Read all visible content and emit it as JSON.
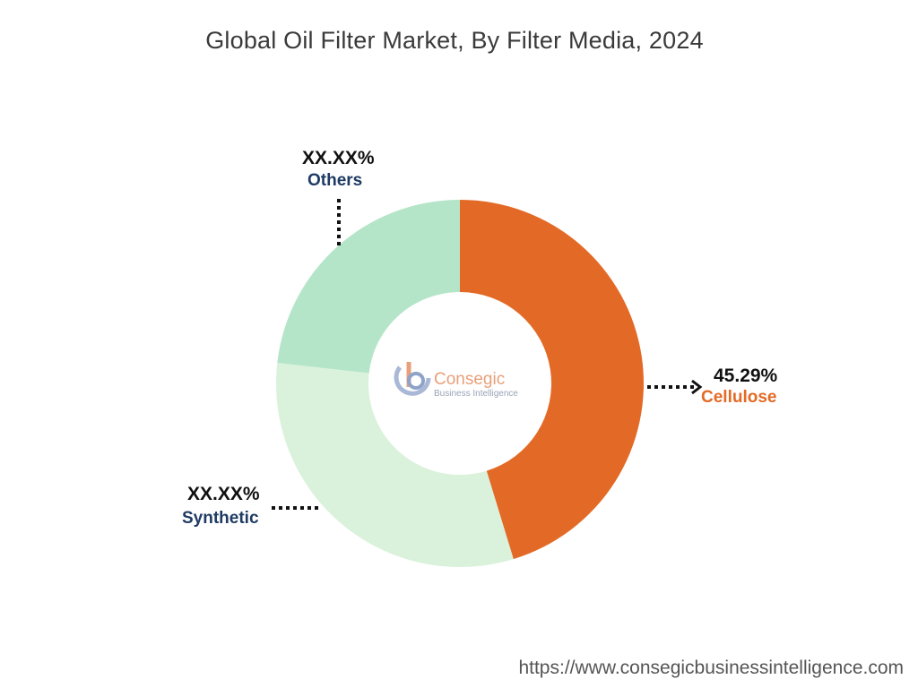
{
  "header": {
    "title": "Global Oil Filter Market, By Filter Media, 2024"
  },
  "chart_data": {
    "type": "pie",
    "variant": "donut",
    "title": "Global Oil Filter Market, By Filter Media, 2024",
    "slices": [
      {
        "name": "Cellulose",
        "value_label": "45.29%",
        "share": 45.29,
        "color": "#e36a26",
        "label_color": "#e36a26"
      },
      {
        "name": "Synthetic",
        "value_label": "XX.XX%",
        "share": 31.5,
        "color": "#daf2dc",
        "label_color": "#1f3b63"
      },
      {
        "name": "Others",
        "value_label": "XX.XX%",
        "share": 23.21,
        "color": "#b5e5c8",
        "label_color": "#1f3b63"
      }
    ],
    "legend": "none"
  },
  "watermark": {
    "name": "Consegic",
    "tagline": "Business Intelligence"
  },
  "footer": {
    "url": "https://www.consegicbusinessintelligence.com"
  }
}
